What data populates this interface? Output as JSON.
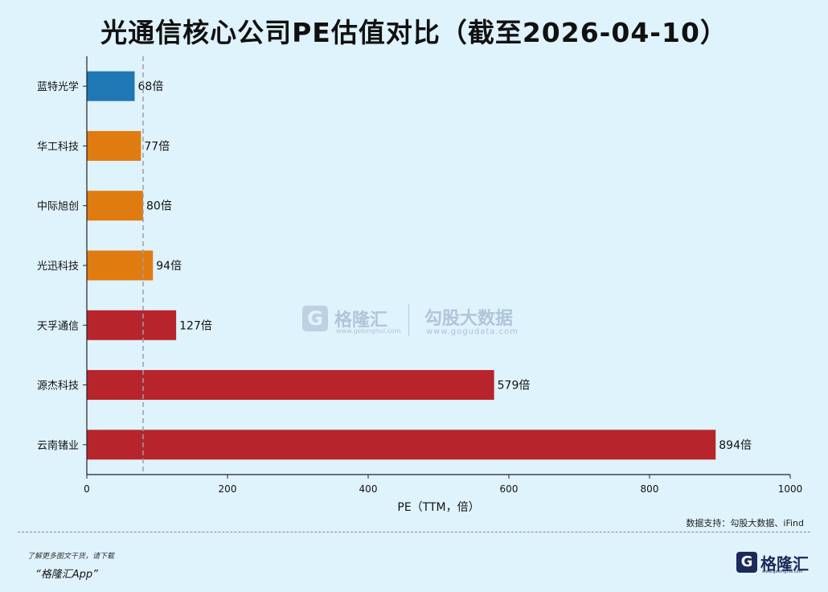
{
  "chart_data": {
    "type": "bar",
    "orientation": "horizontal",
    "title": "光通信核心公司PE估值对比（截至2026-04-10）",
    "xlabel": "PE（TTM，倍）",
    "ylabel": "",
    "xlim": [
      0,
      1000
    ],
    "xticks": [
      "0",
      "200",
      "400",
      "600",
      "800",
      "1000"
    ],
    "reference_line_value": 80,
    "grid": false,
    "categories": [
      "蓝特光学",
      "华工科技",
      "中际旭创",
      "光迅科技",
      "天孚通信",
      "源杰科技",
      "云南锗业"
    ],
    "values": [
      68,
      77,
      80,
      94,
      127,
      579,
      894
    ],
    "value_labels": [
      "68倍",
      "77倍",
      "80倍",
      "94倍",
      "127倍",
      "579倍",
      "894倍"
    ],
    "bar_colors": [
      "#1f77b4",
      "#e07b10",
      "#e07b10",
      "#e07b10",
      "#b8242b",
      "#b8242b",
      "#b8242b"
    ]
  },
  "watermark": {
    "logo_glyph": "G",
    "brand": "格隆汇",
    "brand_url": "www.gelonghui.com",
    "partner": "勾股大数据",
    "partner_url": "www.gogudata.com"
  },
  "source_note": "数据支持：勾股大数据、iFind",
  "footer": {
    "note": "了解更多图文干货，请下载",
    "app": "“格隆汇App”",
    "logo_glyph": "G",
    "brand": "格隆汇",
    "brand_url": "www.gelonghui.com"
  },
  "colors": {
    "background": "#dff3fc",
    "axis": "#222222",
    "reference_line": "#9aa0a6"
  }
}
